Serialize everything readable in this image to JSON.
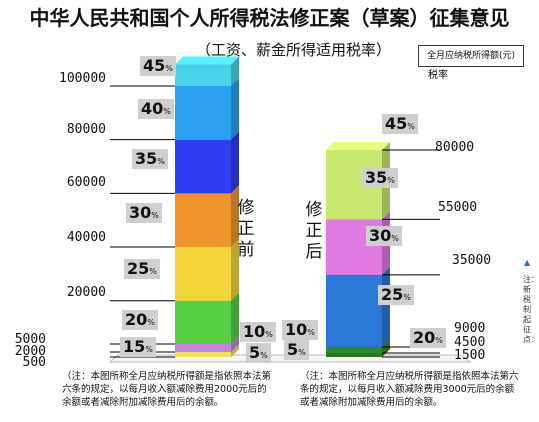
{
  "title": "中华人民共和国个人所得税法修正案（草案）征集意见",
  "subtitle": "（工资、薪金所得适用税率）",
  "legend": {
    "label": "全月应纳税所得额(元)",
    "rate_label": "税率"
  },
  "chart_data": {
    "type": "stacked-bar",
    "y_ticks": [
      "100000",
      "80000",
      "60000",
      "40000",
      "20000",
      "5000",
      "2000",
      "500"
    ],
    "before": {
      "label": "修正前",
      "brackets": [
        500,
        2000,
        5000,
        20000,
        40000,
        60000,
        80000,
        100000
      ],
      "rates": [
        "5",
        "10",
        "15",
        "20",
        "25",
        "30",
        "35",
        "40",
        "45"
      ],
      "colors": [
        "#c77dd0",
        "#f0e05a",
        "#c084e0",
        "#55d045",
        "#f3d43a",
        "#f0942e",
        "#2e3df0",
        "#2aa0f0",
        "#4ad2e8"
      ]
    },
    "after": {
      "label": "修正后",
      "brackets": [
        1500,
        4500,
        9000,
        35000,
        55000,
        80000
      ],
      "rates": [
        "5",
        "10",
        "20",
        "25",
        "30",
        "35",
        "45"
      ],
      "colors": [
        "#e24a4a",
        "#2b7a22",
        "#2e8a2e",
        "#2a78d8",
        "#e07ae0",
        "#c8e870",
        "#c8e870"
      ]
    },
    "rate_unit": "%"
  },
  "notes": {
    "before": "（注：本图所称全月应纳税所得额是指依照本法第六条的规定，以每月收入额减除费用2000元后的余额或者减除附加减除费用后的余额。",
    "after": "（注：本图所称全月应纳税所得额是指依照本法第六条的规定，以每月收入额减除费用3000元后的余额或者减除附加减除费用后的余额。"
  },
  "side_note": "注：新税制起征点：",
  "blue_mark": "▲"
}
